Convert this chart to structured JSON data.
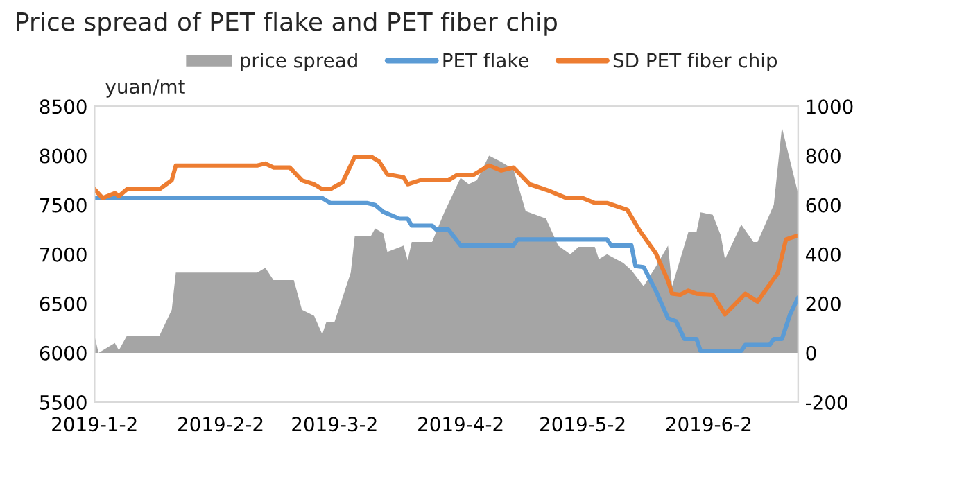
{
  "chart_data": {
    "type": "line",
    "title": "Price spread of PET flake and PET fiber chip",
    "ylabel": "yuan/mt",
    "xlim": [
      "2019-01-02",
      "2019-06-24"
    ],
    "xticks": [
      {
        "value": "2019-01-02",
        "label": "2019-1-2"
      },
      {
        "value": "2019-02-02",
        "label": "2019-2-2"
      },
      {
        "value": "2019-03-02",
        "label": "2019-3-2"
      },
      {
        "value": "2019-04-02",
        "label": "2019-4-2"
      },
      {
        "value": "2019-05-02",
        "label": "2019-5-2"
      },
      {
        "value": "2019-06-02",
        "label": "2019-6-2"
      }
    ],
    "ylim": [
      5500,
      8500
    ],
    "yticks": [
      5500,
      6000,
      6500,
      7000,
      7500,
      8000,
      8500
    ],
    "y2lim": [
      -200,
      1000
    ],
    "y2ticks": [
      -200,
      0,
      200,
      400,
      600,
      800,
      1000
    ],
    "legend": "top",
    "grid": false,
    "marker": "none",
    "series": [
      {
        "name": "price spread",
        "type": "area",
        "axis": "y2",
        "color": "#a5a5a5",
        "x": [
          "2019-01-02",
          "2019-01-03",
          "2019-01-07",
          "2019-01-08",
          "2019-01-10",
          "2019-01-18",
          "2019-01-21",
          "2019-01-22",
          "2019-02-11",
          "2019-02-13",
          "2019-02-15",
          "2019-02-20",
          "2019-02-22",
          "2019-02-25",
          "2019-02-27",
          "2019-02-28",
          "2019-03-02",
          "2019-03-06",
          "2019-03-07",
          "2019-03-11",
          "2019-03-12",
          "2019-03-14",
          "2019-03-15",
          "2019-03-19",
          "2019-03-20",
          "2019-03-21",
          "2019-03-26",
          "2019-03-29",
          "2019-04-02",
          "2019-04-04",
          "2019-04-06",
          "2019-04-09",
          "2019-04-12",
          "2019-04-15",
          "2019-04-18",
          "2019-04-23",
          "2019-04-26",
          "2019-04-29",
          "2019-05-01",
          "2019-05-05",
          "2019-05-06",
          "2019-05-08",
          "2019-05-12",
          "2019-05-14",
          "2019-05-17",
          "2019-05-20",
          "2019-05-23",
          "2019-05-24",
          "2019-05-28",
          "2019-05-30",
          "2019-05-31",
          "2019-06-03",
          "2019-06-05",
          "2019-06-06",
          "2019-06-10",
          "2019-06-13",
          "2019-06-14",
          "2019-06-18",
          "2019-06-20",
          "2019-06-24"
        ],
        "values": [
          70,
          0,
          40,
          10,
          70,
          70,
          175,
          325,
          325,
          345,
          295,
          295,
          175,
          150,
          75,
          125,
          125,
          325,
          475,
          475,
          505,
          485,
          410,
          435,
          375,
          450,
          450,
          570,
          710,
          685,
          700,
          800,
          775,
          745,
          575,
          545,
          435,
          400,
          430,
          430,
          380,
          400,
          365,
          335,
          270,
          350,
          435,
          270,
          490,
          490,
          570,
          560,
          475,
          380,
          520,
          450,
          450,
          600,
          915,
          645
        ]
      },
      {
        "name": "PET flake",
        "axis": "y",
        "color": "#5b9bd5",
        "line_style": "solid",
        "x": [
          "2019-01-02",
          "2019-02-27",
          "2019-03-01",
          "2019-03-10",
          "2019-03-12",
          "2019-03-14",
          "2019-03-18",
          "2019-03-20",
          "2019-03-21",
          "2019-03-26",
          "2019-03-27",
          "2019-03-30",
          "2019-04-02",
          "2019-04-15",
          "2019-04-16",
          "2019-05-08",
          "2019-05-09",
          "2019-05-14",
          "2019-05-15",
          "2019-05-17",
          "2019-05-20",
          "2019-05-23",
          "2019-05-25",
          "2019-05-27",
          "2019-05-30",
          "2019-05-31",
          "2019-06-10",
          "2019-06-11",
          "2019-06-17",
          "2019-06-18",
          "2019-06-20",
          "2019-06-22",
          "2019-06-24"
        ],
        "values": [
          7570,
          7570,
          7520,
          7520,
          7500,
          7430,
          7360,
          7360,
          7290,
          7290,
          7250,
          7250,
          7090,
          7090,
          7150,
          7150,
          7090,
          7090,
          6880,
          6870,
          6630,
          6350,
          6320,
          6140,
          6140,
          6020,
          6020,
          6080,
          6080,
          6140,
          6140,
          6390,
          6560
        ]
      },
      {
        "name": "SD PET fiber chip",
        "axis": "y",
        "color": "#ed7d31",
        "line_style": "solid",
        "x": [
          "2019-01-02",
          "2019-01-04",
          "2019-01-07",
          "2019-01-08",
          "2019-01-10",
          "2019-01-18",
          "2019-01-21",
          "2019-01-22",
          "2019-02-11",
          "2019-02-13",
          "2019-02-15",
          "2019-02-19",
          "2019-02-22",
          "2019-02-25",
          "2019-02-27",
          "2019-03-01",
          "2019-03-04",
          "2019-03-07",
          "2019-03-11",
          "2019-03-13",
          "2019-03-15",
          "2019-03-19",
          "2019-03-20",
          "2019-03-23",
          "2019-03-30",
          "2019-04-01",
          "2019-04-05",
          "2019-04-09",
          "2019-04-12",
          "2019-04-15",
          "2019-04-19",
          "2019-04-24",
          "2019-04-28",
          "2019-05-02",
          "2019-05-05",
          "2019-05-08",
          "2019-05-13",
          "2019-05-16",
          "2019-05-20",
          "2019-05-23",
          "2019-05-24",
          "2019-05-26",
          "2019-05-28",
          "2019-05-30",
          "2019-06-03",
          "2019-06-06",
          "2019-06-11",
          "2019-06-14",
          "2019-06-19",
          "2019-06-21",
          "2019-06-24"
        ],
        "values": [
          7660,
          7570,
          7620,
          7590,
          7660,
          7660,
          7750,
          7900,
          7900,
          7920,
          7880,
          7880,
          7750,
          7710,
          7660,
          7660,
          7730,
          7990,
          7990,
          7940,
          7810,
          7780,
          7710,
          7750,
          7750,
          7800,
          7800,
          7900,
          7850,
          7880,
          7710,
          7640,
          7570,
          7570,
          7520,
          7520,
          7450,
          7240,
          7010,
          6730,
          6600,
          6590,
          6630,
          6600,
          6590,
          6390,
          6600,
          6520,
          6810,
          7150,
          7190
        ]
      }
    ]
  }
}
